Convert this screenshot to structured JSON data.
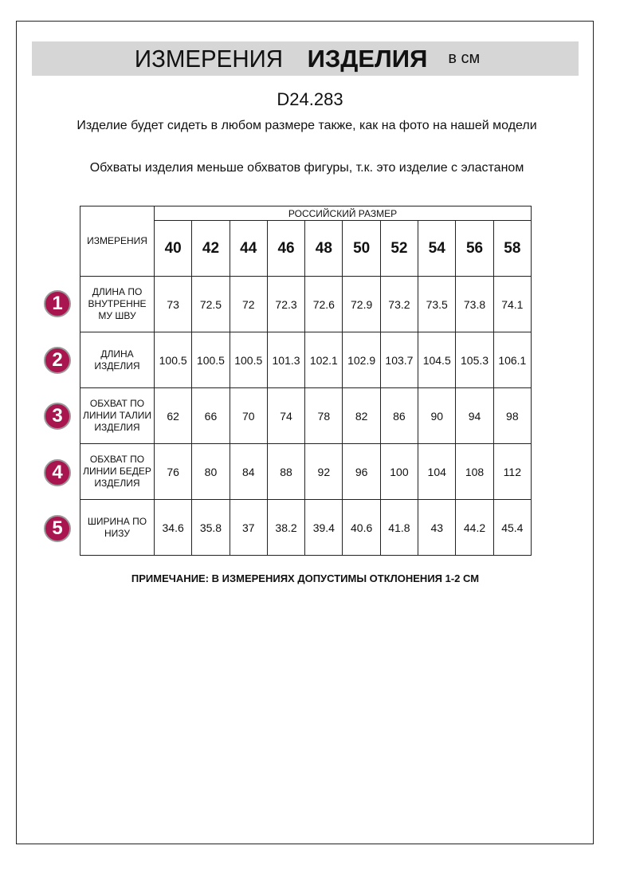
{
  "title": {
    "part1": "ИЗМЕРЕНИЯ",
    "part2": "ИЗДЕЛИЯ",
    "unit": "в см"
  },
  "article": "D24.283",
  "notes": [
    "Изделие будет сидеть в любом размере также, как на фото на нашей модели",
    "Обхваты изделия меньше обхватов фигуры, т.к. это изделие с эластаном"
  ],
  "table": {
    "measure_header": "ИЗМЕРЕНИЯ",
    "size_header": "РОССИЙСКИЙ РАЗМЕР",
    "sizes": [
      "40",
      "42",
      "44",
      "46",
      "48",
      "50",
      "52",
      "54",
      "56",
      "58"
    ],
    "rows": [
      {
        "num": "1",
        "label": "ДЛИНА ПО ВНУТРЕННЕ МУ ШВУ",
        "values": [
          "73",
          "72.5",
          "72",
          "72.3",
          "72.6",
          "72.9",
          "73.2",
          "73.5",
          "73.8",
          "74.1"
        ]
      },
      {
        "num": "2",
        "label": "ДЛИНА ИЗДЕЛИЯ",
        "values": [
          "100.5",
          "100.5",
          "100.5",
          "101.3",
          "102.1",
          "102.9",
          "103.7",
          "104.5",
          "105.3",
          "106.1"
        ]
      },
      {
        "num": "3",
        "label": "ОБХВАТ ПО ЛИНИИ ТАЛИИ ИЗДЕЛИЯ",
        "values": [
          "62",
          "66",
          "70",
          "74",
          "78",
          "82",
          "86",
          "90",
          "94",
          "98"
        ]
      },
      {
        "num": "4",
        "label": "ОБХВАТ ПО ЛИНИИ БЕДЕР ИЗДЕЛИЯ",
        "values": [
          "76",
          "80",
          "84",
          "88",
          "92",
          "96",
          "100",
          "104",
          "108",
          "112"
        ]
      },
      {
        "num": "5",
        "label": "ШИРИНА ПО НИЗУ",
        "values": [
          "34.6",
          "35.8",
          "37",
          "38.2",
          "39.4",
          "40.6",
          "41.8",
          "43",
          "44.2",
          "45.4"
        ]
      }
    ]
  },
  "footnote": "ПРИМЕЧАНИЕ: В ИЗМЕРЕНИЯХ ДОПУСТИМЫ ОТКЛОНЕНИЯ 1-2 СМ",
  "colors": {
    "badge": "#a8154f",
    "banner": "#d6d6d6"
  }
}
